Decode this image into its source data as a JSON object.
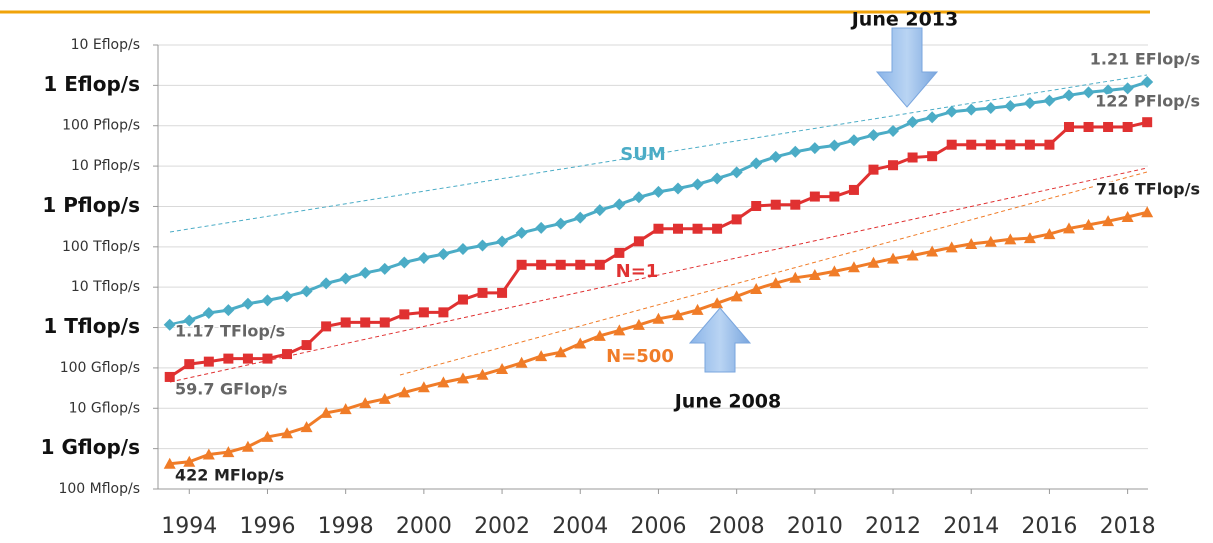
{
  "chart_data": {
    "type": "line",
    "log_scale": true,
    "grid": true,
    "annotations": [
      "June 2013",
      "June 2008"
    ],
    "x": [
      1993.5,
      1994,
      1994.5,
      1995,
      1995.5,
      1996,
      1996.5,
      1997,
      1997.5,
      1998,
      1998.5,
      1999,
      1999.5,
      2000,
      2000.5,
      2001,
      2001.5,
      2002,
      2002.5,
      2003,
      2003.5,
      2004,
      2004.5,
      2005,
      2005.5,
      2006,
      2006.5,
      2007,
      2007.5,
      2008,
      2008.5,
      2009,
      2009.5,
      2010,
      2010.5,
      2011,
      2011.5,
      2012,
      2012.5,
      2013,
      2013.5,
      2014,
      2014.5,
      2015,
      2015.5,
      2016,
      2016.5,
      2017,
      2017.5,
      2018,
      2018.5
    ],
    "xlim": [
      1993.2,
      2018.7
    ],
    "xticks": [
      1994,
      1996,
      1998,
      2000,
      2002,
      2004,
      2006,
      2008,
      2010,
      2012,
      2014,
      2016,
      2018
    ],
    "ylim": [
      0.0001,
      10000000
    ],
    "yticks": [
      {
        "value": 0.0001,
        "label": "100 Mflop/s"
      },
      {
        "value": 0.001,
        "label": "1 Gflop/s"
      },
      {
        "value": 0.01,
        "label": "10 Gflop/s"
      },
      {
        "value": 0.1,
        "label": "100 Gflop/s"
      },
      {
        "value": 1,
        "label": "1 Tflop/s"
      },
      {
        "value": 10,
        "label": "10 Tflop/s"
      },
      {
        "value": 100,
        "label": "100 Tflop/s"
      },
      {
        "value": 1000,
        "label": "1 Pflop/s"
      },
      {
        "value": 10000,
        "label": "10 Pflop/s"
      },
      {
        "value": 100000,
        "label": "100 Pflop/s"
      },
      {
        "value": 1000000,
        "label": "1 Eflop/s"
      },
      {
        "value": 10000000,
        "label": "10 Eflop/s"
      }
    ],
    "series": [
      {
        "name": "SUM",
        "color": "#4bacc6",
        "marker": "diamond",
        "values": [
          1.17,
          1.5,
          2.3,
          2.7,
          3.9,
          4.7,
          5.9,
          7.9,
          12.4,
          16.4,
          22.6,
          28.4,
          41,
          53,
          66,
          88,
          108,
          135,
          222,
          294,
          375,
          528,
          813,
          1127,
          1690,
          2300,
          2790,
          3530,
          4920,
          6970,
          11700,
          16950,
          22600,
          27950,
          32400,
          43700,
          58700,
          74200,
          123400,
          162000,
          223000,
          250000,
          274000,
          309000,
          363000,
          420000,
          567000,
          672000,
          749000,
          845000,
          1210000
        ],
        "value_labels": [
          "1.17 TFlop/s",
          null,
          null,
          null,
          null,
          null,
          null,
          null,
          null,
          null,
          null,
          null,
          null,
          null,
          null,
          null,
          null,
          null,
          null,
          null,
          null,
          null,
          null,
          null,
          null,
          null,
          null,
          null,
          null,
          null,
          null,
          null,
          null,
          null,
          null,
          null,
          null,
          null,
          null,
          null,
          null,
          null,
          null,
          null,
          null,
          null,
          null,
          null,
          null,
          null,
          "1.21 EFlop/s"
        ]
      },
      {
        "name": "N=1",
        "color": "#e03131",
        "marker": "square",
        "values": [
          0.0597,
          0.124,
          0.143,
          0.17,
          0.17,
          0.17,
          0.22,
          0.368,
          1.068,
          1.338,
          1.338,
          1.338,
          2.121,
          2.379,
          2.379,
          4.938,
          7.226,
          7.226,
          35.86,
          35.86,
          35.86,
          35.86,
          35.86,
          70.72,
          136.8,
          280.6,
          280.6,
          280.6,
          280.6,
          478.2,
          1026,
          1105,
          1105,
          1759,
          1759,
          2566,
          8162,
          10510,
          16324,
          17590,
          33863,
          33863,
          33863,
          33863,
          33863,
          33863,
          93015,
          93015,
          93015,
          93015,
          122300
        ],
        "value_labels": [
          "59.7 GFlop/s",
          null,
          null,
          null,
          null,
          null,
          null,
          null,
          null,
          null,
          null,
          null,
          null,
          null,
          null,
          null,
          null,
          null,
          null,
          null,
          null,
          null,
          null,
          null,
          null,
          null,
          null,
          null,
          null,
          null,
          null,
          null,
          null,
          null,
          null,
          null,
          null,
          null,
          null,
          null,
          null,
          null,
          null,
          null,
          null,
          null,
          null,
          null,
          null,
          null,
          "122 PFlop/s"
        ]
      },
      {
        "name": "N=500",
        "color": "#f07c28",
        "marker": "triangle",
        "values": [
          0.000422,
          0.000472,
          0.000715,
          0.000822,
          0.001114,
          0.001955,
          0.0024,
          0.0034,
          0.0077,
          0.0095,
          0.0134,
          0.0171,
          0.0247,
          0.0331,
          0.0438,
          0.0551,
          0.0678,
          0.0943,
          0.134,
          0.196,
          0.245,
          0.403,
          0.624,
          0.85,
          1.166,
          1.646,
          2.026,
          2.737,
          4.005,
          5.929,
          9,
          12.64,
          17.1,
          20.05,
          24.67,
          31.12,
          40.19,
          50.9,
          60.8,
          76.5,
          96.6,
          117.8,
          133.7,
          153.4,
          164,
          206,
          286,
          349,
          432,
          548,
          716
        ],
        "value_labels": [
          "422 MFlop/s",
          null,
          null,
          null,
          null,
          null,
          null,
          null,
          null,
          null,
          null,
          null,
          null,
          null,
          null,
          null,
          null,
          null,
          null,
          null,
          null,
          null,
          null,
          null,
          null,
          null,
          null,
          null,
          null,
          null,
          null,
          null,
          null,
          null,
          null,
          null,
          null,
          null,
          null,
          null,
          null,
          null,
          null,
          null,
          null,
          null,
          null,
          null,
          null,
          null,
          "716 TFlop/s"
        ]
      }
    ]
  }
}
